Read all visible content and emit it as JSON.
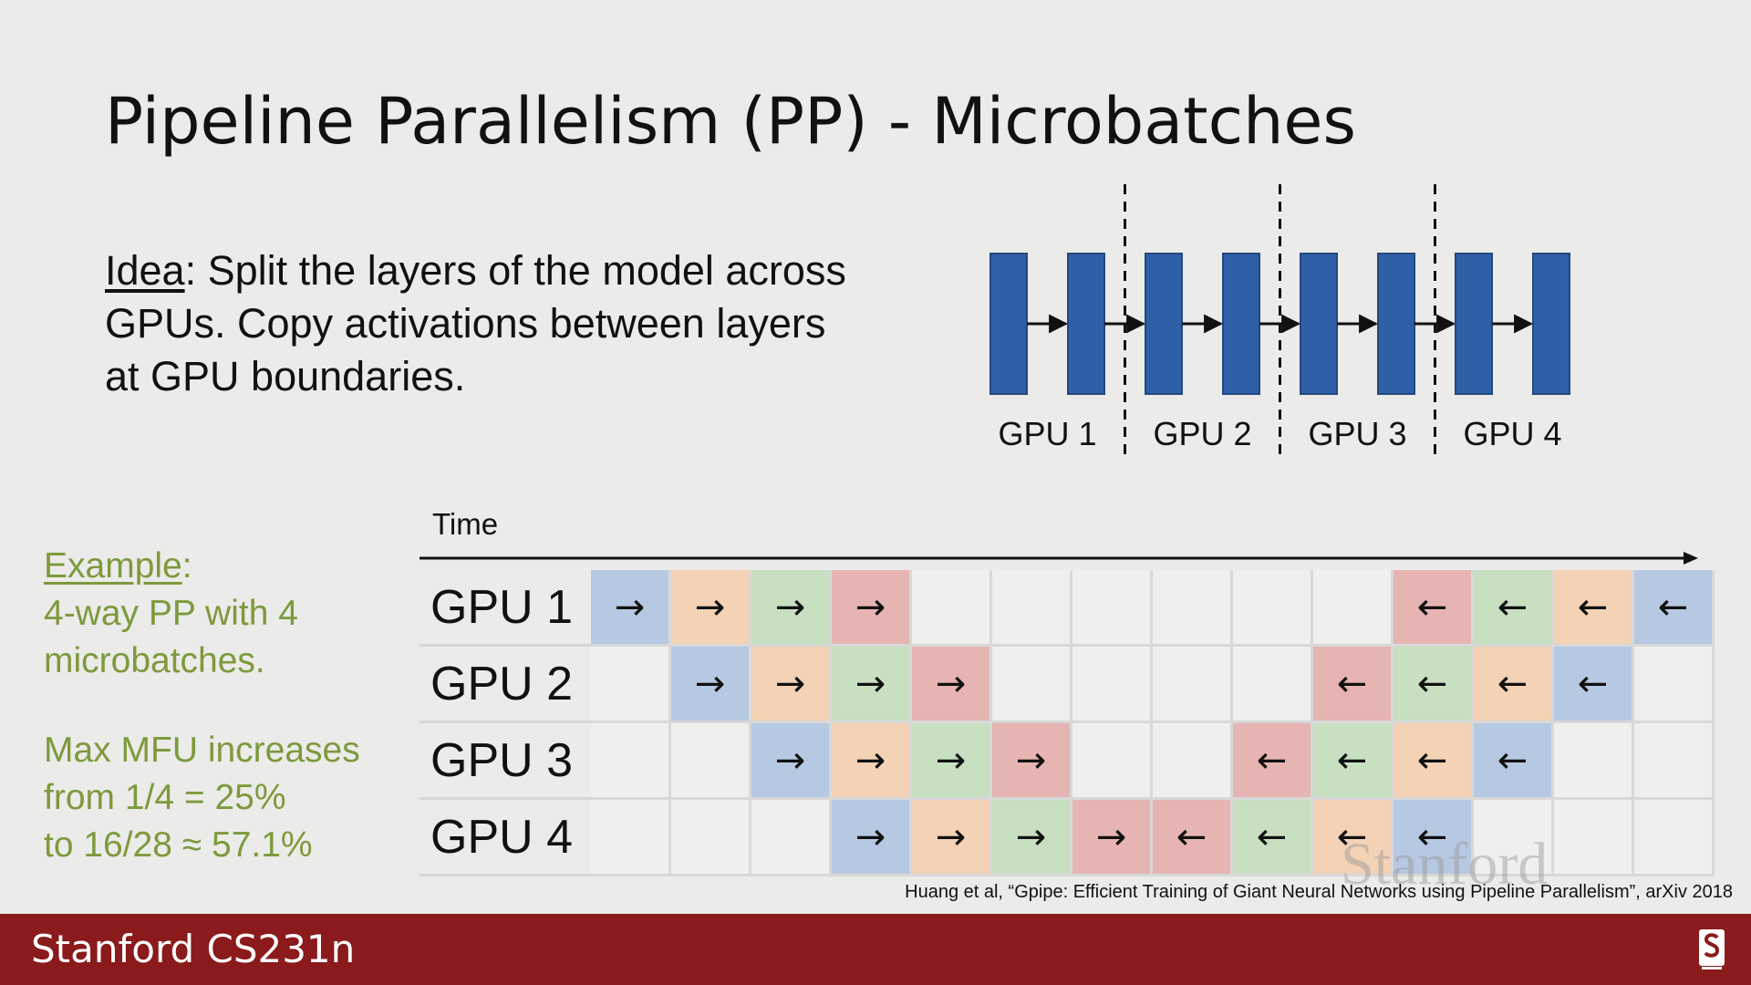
{
  "title": "Pipeline Parallelism (PP) - Microbatches",
  "idea": {
    "label": "Idea",
    "text": ": Split the layers of the model across GPUs. Copy activations between layers at GPU boundaries."
  },
  "layer_diagram": {
    "gpu_labels": [
      "GPU 1",
      "GPU 2",
      "GPU 3",
      "GPU 4"
    ],
    "layers_per_gpu": 2
  },
  "example": {
    "label": "Example",
    "text": ":",
    "line": "4-way PP with 4 microbatches."
  },
  "mfu": {
    "line1": "Max MFU increases",
    "line2": "from 1/4 = 25%",
    "line3": "to 16/28 ≈ 57.1%"
  },
  "schedule": {
    "time_label": "Time",
    "rows": [
      {
        "label": "GPU 1",
        "cells": [
          {
            "c": "blue",
            "s": "→"
          },
          {
            "c": "orange",
            "s": "→"
          },
          {
            "c": "green",
            "s": "→"
          },
          {
            "c": "red",
            "s": "→"
          },
          {
            "c": "empty",
            "s": ""
          },
          {
            "c": "empty",
            "s": ""
          },
          {
            "c": "empty",
            "s": ""
          },
          {
            "c": "empty",
            "s": ""
          },
          {
            "c": "empty",
            "s": ""
          },
          {
            "c": "empty",
            "s": ""
          },
          {
            "c": "red",
            "s": "←"
          },
          {
            "c": "green",
            "s": "←"
          },
          {
            "c": "orange",
            "s": "←"
          },
          {
            "c": "blue",
            "s": "←"
          }
        ]
      },
      {
        "label": "GPU 2",
        "cells": [
          {
            "c": "empty",
            "s": ""
          },
          {
            "c": "blue",
            "s": "→"
          },
          {
            "c": "orange",
            "s": "→"
          },
          {
            "c": "green",
            "s": "→"
          },
          {
            "c": "red",
            "s": "→"
          },
          {
            "c": "empty",
            "s": ""
          },
          {
            "c": "empty",
            "s": ""
          },
          {
            "c": "empty",
            "s": ""
          },
          {
            "c": "empty",
            "s": ""
          },
          {
            "c": "red",
            "s": "←"
          },
          {
            "c": "green",
            "s": "←"
          },
          {
            "c": "orange",
            "s": "←"
          },
          {
            "c": "blue",
            "s": "←"
          },
          {
            "c": "empty",
            "s": ""
          }
        ]
      },
      {
        "label": "GPU 3",
        "cells": [
          {
            "c": "empty",
            "s": ""
          },
          {
            "c": "empty",
            "s": ""
          },
          {
            "c": "blue",
            "s": "→"
          },
          {
            "c": "orange",
            "s": "→"
          },
          {
            "c": "green",
            "s": "→"
          },
          {
            "c": "red",
            "s": "→"
          },
          {
            "c": "empty",
            "s": ""
          },
          {
            "c": "empty",
            "s": ""
          },
          {
            "c": "red",
            "s": "←"
          },
          {
            "c": "green",
            "s": "←"
          },
          {
            "c": "orange",
            "s": "←"
          },
          {
            "c": "blue",
            "s": "←"
          },
          {
            "c": "empty",
            "s": ""
          },
          {
            "c": "empty",
            "s": ""
          }
        ]
      },
      {
        "label": "GPU 4",
        "cells": [
          {
            "c": "empty",
            "s": ""
          },
          {
            "c": "empty",
            "s": ""
          },
          {
            "c": "empty",
            "s": ""
          },
          {
            "c": "blue",
            "s": "→"
          },
          {
            "c": "orange",
            "s": "→"
          },
          {
            "c": "green",
            "s": "→"
          },
          {
            "c": "red",
            "s": "→"
          },
          {
            "c": "red",
            "s": "←"
          },
          {
            "c": "green",
            "s": "←"
          },
          {
            "c": "orange",
            "s": "←"
          },
          {
            "c": "blue",
            "s": "←"
          },
          {
            "c": "empty",
            "s": ""
          },
          {
            "c": "empty",
            "s": ""
          },
          {
            "c": "empty",
            "s": ""
          }
        ]
      }
    ]
  },
  "citation": "Huang et al, “Gpipe: Efficient Training of Giant Neural Networks using Pipeline Parallelism”, arXiv 2018",
  "watermark": "Stanford",
  "footer": {
    "text": "Stanford CS231n",
    "logo_icon": "stanford-s-logo-icon"
  },
  "colors": {
    "blue": "#b6c8e2",
    "orange": "#f3d2b6",
    "green": "#c8dfc2",
    "red": "#e6b4b2",
    "layer_block": "#2f5fa7",
    "footer": "#8a1a1c",
    "example_text": "#7d9a3c"
  }
}
